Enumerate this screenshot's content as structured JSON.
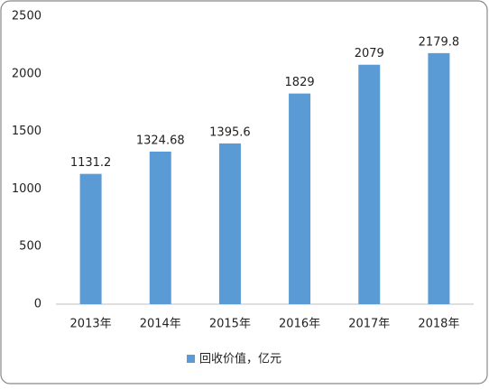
{
  "chart_data": {
    "type": "bar",
    "categories": [
      "2013年",
      "2014年",
      "2015年",
      "2016年",
      "2017年",
      "2018年"
    ],
    "series": [
      {
        "name": "回收价值，亿元",
        "color": "#5b9bd5",
        "values": [
          1131.2,
          1324.68,
          1395.6,
          1829,
          2079,
          2179.8
        ]
      }
    ],
    "ylim": [
      0,
      2500
    ],
    "yticks": [
      0,
      500,
      1000,
      1500,
      2000,
      2500
    ],
    "grid": false,
    "legend": "bottom",
    "data_labels": true
  }
}
